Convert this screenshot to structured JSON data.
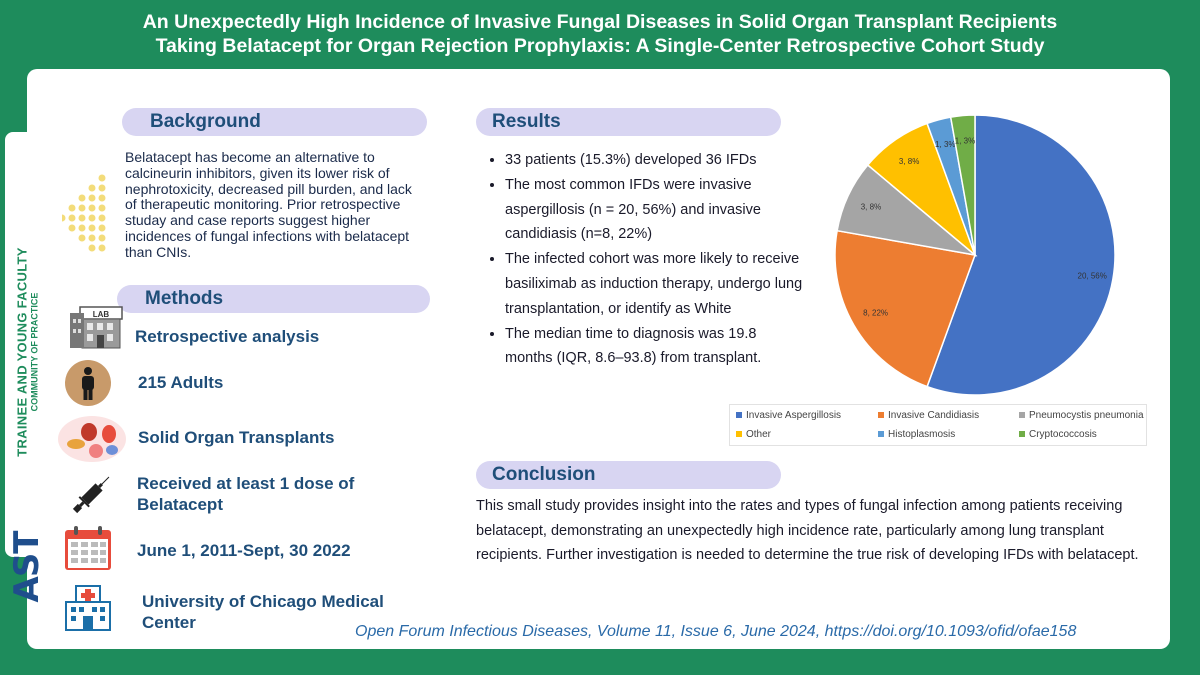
{
  "title": {
    "line1": "An Unexpectedly High Incidence of Invasive Fungal Diseases in Solid Organ Transplant Recipients",
    "line2": "Taking Belatacept for Organ Rejection Prophylaxis: A Single-Center Retrospective Cohort Study"
  },
  "sidebar": {
    "line1": "TRAINEE AND YOUNG FACULTY",
    "line2": "COMMUNITY OF PRACTICE",
    "logo": "AST"
  },
  "background": {
    "heading": "Background",
    "text": "Belatacept has become an alternative to calcineurin inhibitors, given its lower risk of nephrotoxicity, decreased pill burden, and lack of therapeutic monitoring. Prior retrospective studay and case reports suggest higher incidences of fungal infections with belatacept than CNIs."
  },
  "methods": {
    "heading": "Methods",
    "lab_sign": "LAB",
    "items": [
      {
        "icon": "lab-building-icon",
        "label": "Retrospective analysis"
      },
      {
        "icon": "person-icon",
        "label": "215 Adults"
      },
      {
        "icon": "organs-icon",
        "label": "Solid Organ Transplants"
      },
      {
        "icon": "syringe-icon",
        "label": "Received at least 1 dose of Belatacept"
      },
      {
        "icon": "calendar-icon",
        "label": "June 1, 2011-Sept, 30 2022"
      },
      {
        "icon": "hospital-icon",
        "label": "University of Chicago Medical Center"
      }
    ]
  },
  "results": {
    "heading": "Results",
    "bullets": [
      "33 patients (15.3%) developed 36 IFDs",
      "The most common IFDs were invasive aspergillosis (n = 20, 56%) and invasive candidiasis (n=8, 22%)",
      "The infected cohort was more likely to receive basiliximab as induction therapy, undergo lung transplantation, or identify as White",
      "The median time to diagnosis was 19.8 months (IQR, 8.6–93.8) from transplant."
    ]
  },
  "conclusion": {
    "heading": "Conclusion",
    "text": "This small study provides insight into the rates and types of fungal infection among patients receiving belatacept, demonstrating an unexpectedly high incidence rate, particularly among lung transplant recipients. Further investigation is needed to determine the true risk of developing IFDs with belatacept."
  },
  "citation": "Open Forum Infectious Diseases, Volume 11, Issue 6, June 2024, https://doi.org/10.1093/ofid/ofae158",
  "chart_data": {
    "type": "pie",
    "title": "",
    "slices": [
      {
        "name": "Invasive Aspergillosis",
        "count": 20,
        "percent": 56,
        "label": "20, 56%",
        "color": "#4472c4"
      },
      {
        "name": "Invasive Candidiasis",
        "count": 8,
        "percent": 22,
        "label": "8, 22%",
        "color": "#ed7d31"
      },
      {
        "name": "Pneumocystis pneumonia",
        "count": 3,
        "percent": 8,
        "label": "3, 8%",
        "color": "#a5a5a5"
      },
      {
        "name": "Other",
        "count": 3,
        "percent": 8,
        "label": "3, 8%",
        "color": "#ffc000"
      },
      {
        "name": "Histoplasmosis",
        "count": 1,
        "percent": 3,
        "label": "1, 3%",
        "color": "#5b9bd5"
      },
      {
        "name": "Cryptococcosis",
        "count": 1,
        "percent": 3,
        "label": "1, 3%",
        "color": "#70ad47"
      }
    ],
    "legend_position": "bottom"
  }
}
